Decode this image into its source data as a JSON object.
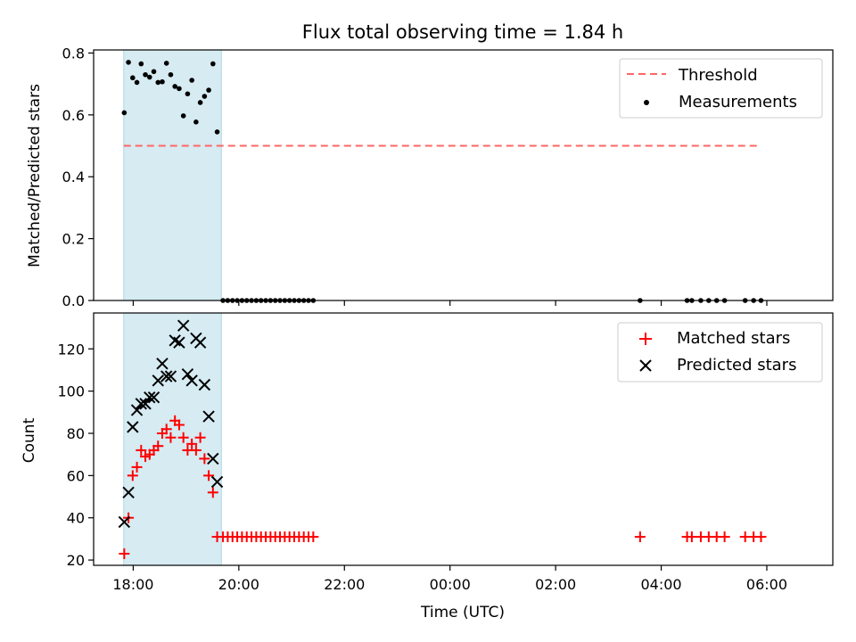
{
  "chart_data": [
    {
      "type": "scatter",
      "panel": "top",
      "title": "Flux total observing time = 1.84 h",
      "xlabel": "",
      "ylabel": "Matched/Predicted stars",
      "x_unit": "hours since 18:00 UTC",
      "xlim": [
        -0.75,
        13.25
      ],
      "ylim": [
        0.0,
        0.81
      ],
      "yticks": [
        0.0,
        0.2,
        0.4,
        0.6,
        0.8
      ],
      "ytick_labels": [
        "0.0",
        "0.2",
        "0.4",
        "0.6",
        "0.8"
      ],
      "shaded_span": {
        "x0": -0.18,
        "x1": 1.67,
        "color": "#add8e6"
      },
      "threshold": {
        "name": "Threshold",
        "value": 0.5,
        "x0": -0.18,
        "x1": 11.84,
        "color": "#ff6666"
      },
      "series": [
        {
          "name": "Measurements",
          "marker": "dot",
          "color": "#000000",
          "points": [
            [
              -0.17,
              0.607
            ],
            [
              -0.09,
              0.77
            ],
            [
              -0.01,
              0.72
            ],
            [
              0.07,
              0.705
            ],
            [
              0.15,
              0.765
            ],
            [
              0.23,
              0.73
            ],
            [
              0.31,
              0.722
            ],
            [
              0.39,
              0.74
            ],
            [
              0.47,
              0.705
            ],
            [
              0.55,
              0.707
            ],
            [
              0.63,
              0.767
            ],
            [
              0.71,
              0.73
            ],
            [
              0.79,
              0.692
            ],
            [
              0.87,
              0.685
            ],
            [
              0.95,
              0.597
            ],
            [
              1.03,
              0.668
            ],
            [
              1.11,
              0.712
            ],
            [
              1.19,
              0.577
            ],
            [
              1.27,
              0.64
            ],
            [
              1.35,
              0.66
            ],
            [
              1.43,
              0.68
            ],
            [
              1.51,
              0.765
            ],
            [
              1.59,
              0.545
            ],
            [
              1.7,
              0.0
            ],
            [
              1.79,
              0.0
            ],
            [
              1.88,
              0.0
            ],
            [
              1.97,
              0.0
            ],
            [
              2.06,
              0.0
            ],
            [
              2.15,
              0.0
            ],
            [
              2.24,
              0.0
            ],
            [
              2.33,
              0.0
            ],
            [
              2.42,
              0.0
            ],
            [
              2.51,
              0.0
            ],
            [
              2.6,
              0.0
            ],
            [
              2.69,
              0.0
            ],
            [
              2.78,
              0.0
            ],
            [
              2.87,
              0.0
            ],
            [
              2.96,
              0.0
            ],
            [
              3.05,
              0.0
            ],
            [
              3.14,
              0.0
            ],
            [
              3.23,
              0.0
            ],
            [
              3.32,
              0.0
            ],
            [
              3.41,
              0.0
            ],
            [
              9.6,
              0.0
            ],
            [
              10.49,
              0.0
            ],
            [
              10.58,
              0.0
            ],
            [
              10.75,
              0.0
            ],
            [
              10.9,
              0.0
            ],
            [
              11.05,
              0.0
            ],
            [
              11.2,
              0.0
            ],
            [
              11.59,
              0.0
            ],
            [
              11.75,
              0.0
            ],
            [
              11.89,
              0.0
            ]
          ]
        }
      ],
      "legend": {
        "position": "top-right",
        "entries": [
          "Threshold",
          "Measurements"
        ]
      }
    },
    {
      "type": "scatter",
      "panel": "bottom",
      "title": "",
      "xlabel": "Time (UTC)",
      "ylabel": "Count",
      "x_unit": "hours since 18:00 UTC",
      "xlim": [
        -0.75,
        13.25
      ],
      "ylim": [
        17.5,
        137.0
      ],
      "yticks": [
        20,
        40,
        60,
        80,
        100,
        120
      ],
      "ytick_labels": [
        "20",
        "40",
        "60",
        "80",
        "100",
        "120"
      ],
      "xticks": [
        0,
        2,
        4,
        6,
        8,
        10,
        12
      ],
      "xtick_labels": [
        "18:00",
        "20:00",
        "22:00",
        "00:00",
        "02:00",
        "04:00",
        "06:00"
      ],
      "shaded_span": {
        "x0": -0.18,
        "x1": 1.67,
        "color": "#add8e6"
      },
      "series": [
        {
          "name": "Matched stars",
          "marker": "plus",
          "color": "#ff0000",
          "points": [
            [
              -0.17,
              23
            ],
            [
              -0.09,
              40
            ],
            [
              -0.01,
              60
            ],
            [
              0.07,
              64
            ],
            [
              0.15,
              72
            ],
            [
              0.23,
              69
            ],
            [
              0.31,
              70
            ],
            [
              0.39,
              72
            ],
            [
              0.47,
              74
            ],
            [
              0.55,
              80
            ],
            [
              0.63,
              82
            ],
            [
              0.71,
              78
            ],
            [
              0.79,
              86
            ],
            [
              0.87,
              84
            ],
            [
              0.95,
              78
            ],
            [
              1.03,
              72
            ],
            [
              1.11,
              75
            ],
            [
              1.19,
              72
            ],
            [
              1.27,
              78
            ],
            [
              1.35,
              68
            ],
            [
              1.43,
              60
            ],
            [
              1.51,
              52
            ],
            [
              1.59,
              31
            ],
            [
              1.7,
              31
            ],
            [
              1.79,
              31
            ],
            [
              1.88,
              31
            ],
            [
              1.97,
              31
            ],
            [
              2.06,
              31
            ],
            [
              2.15,
              31
            ],
            [
              2.24,
              31
            ],
            [
              2.33,
              31
            ],
            [
              2.42,
              31
            ],
            [
              2.51,
              31
            ],
            [
              2.6,
              31
            ],
            [
              2.69,
              31
            ],
            [
              2.78,
              31
            ],
            [
              2.87,
              31
            ],
            [
              2.96,
              31
            ],
            [
              3.05,
              31
            ],
            [
              3.14,
              31
            ],
            [
              3.23,
              31
            ],
            [
              3.32,
              31
            ],
            [
              3.41,
              31
            ],
            [
              9.6,
              31
            ],
            [
              10.49,
              31
            ],
            [
              10.58,
              31
            ],
            [
              10.75,
              31
            ],
            [
              10.9,
              31
            ],
            [
              11.05,
              31
            ],
            [
              11.2,
              31
            ],
            [
              11.59,
              31
            ],
            [
              11.75,
              31
            ],
            [
              11.89,
              31
            ]
          ]
        },
        {
          "name": "Predicted stars",
          "marker": "x",
          "color": "#000000",
          "points": [
            [
              -0.17,
              38
            ],
            [
              -0.09,
              52
            ],
            [
              -0.01,
              83
            ],
            [
              0.07,
              91
            ],
            [
              0.15,
              94
            ],
            [
              0.23,
              94
            ],
            [
              0.31,
              97
            ],
            [
              0.39,
              97
            ],
            [
              0.47,
              105
            ],
            [
              0.55,
              113
            ],
            [
              0.63,
              107
            ],
            [
              0.71,
              107
            ],
            [
              0.79,
              124
            ],
            [
              0.87,
              123
            ],
            [
              0.95,
              131
            ],
            [
              1.03,
              108
            ],
            [
              1.11,
              105
            ],
            [
              1.19,
              125
            ],
            [
              1.27,
              123
            ],
            [
              1.35,
              103
            ],
            [
              1.43,
              88
            ],
            [
              1.51,
              68
            ],
            [
              1.59,
              57
            ]
          ]
        }
      ],
      "legend": {
        "position": "top-right",
        "entries": [
          "Matched stars",
          "Predicted stars"
        ]
      }
    }
  ]
}
